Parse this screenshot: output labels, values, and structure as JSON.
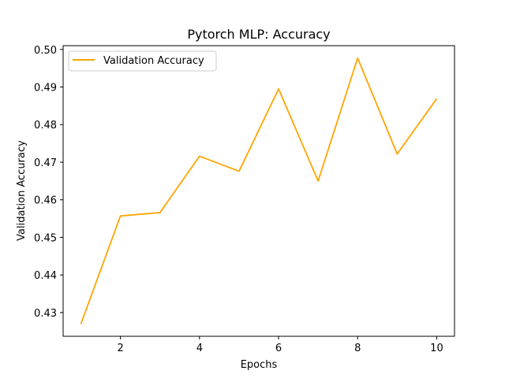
{
  "chart_data": {
    "type": "line",
    "title": "Pytorch MLP: Accuracy",
    "xlabel": "Epochs",
    "ylabel": "Validation Accuracy",
    "x": [
      1,
      2,
      3,
      4,
      5,
      6,
      7,
      8,
      9,
      10
    ],
    "series": [
      {
        "name": "Validation Accuracy",
        "color": "#ffa500",
        "values": [
          0.427,
          0.4557,
          0.4566,
          0.4716,
          0.4676,
          0.4895,
          0.465,
          0.4977,
          0.4722,
          0.4869
        ]
      }
    ],
    "xlim": [
      0.55,
      10.45
    ],
    "ylim": [
      0.4237,
      0.501
    ],
    "xticks": [
      2,
      4,
      6,
      8,
      10
    ],
    "xtick_labels": [
      "2",
      "4",
      "6",
      "8",
      "10"
    ],
    "yticks": [
      0.43,
      0.44,
      0.45,
      0.46,
      0.47,
      0.48,
      0.49,
      0.5
    ],
    "ytick_labels": [
      "0.43",
      "0.44",
      "0.45",
      "0.46",
      "0.47",
      "0.48",
      "0.49",
      "0.50"
    ],
    "grid": false,
    "legend_position": "top-left"
  }
}
